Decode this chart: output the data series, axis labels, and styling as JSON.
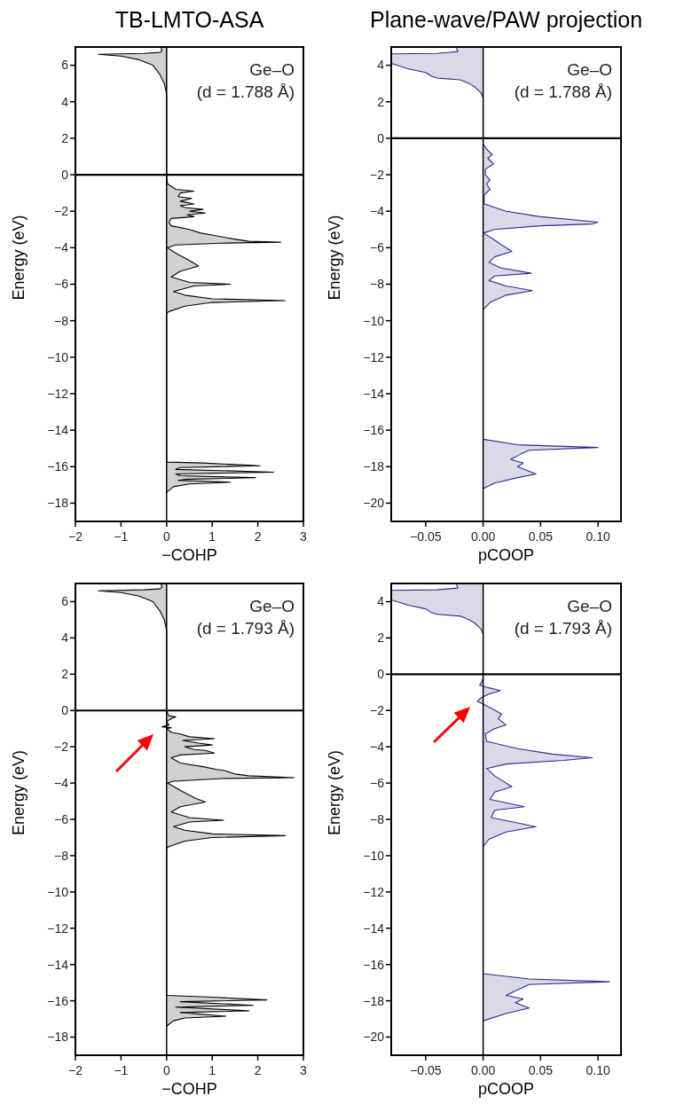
{
  "chart_data": [
    {
      "type": "area",
      "orientation": "horizontal",
      "title": "TB-LMTO-ASA",
      "xlabel": "−COHP",
      "ylabel": "Energy (eV)",
      "annotations": [
        "Ge–O",
        "(d = 1.788 Å)"
      ],
      "xlim": [
        -2,
        3
      ],
      "xticks": [
        {
          "value": -2,
          "label": "−2"
        },
        {
          "value": -1,
          "label": "−1"
        },
        0,
        1,
        2,
        3
      ],
      "ylim": [
        -19,
        7
      ],
      "yticks": [
        6,
        4,
        2,
        0,
        {
          "value": -2,
          "label": "−2"
        },
        {
          "value": -4,
          "label": "−4"
        },
        {
          "value": -6,
          "label": "−6"
        },
        {
          "value": -8,
          "label": "−8"
        },
        {
          "value": -10,
          "label": "−10"
        },
        {
          "value": -12,
          "label": "−12"
        },
        {
          "value": -14,
          "label": "−14"
        },
        {
          "value": -16,
          "label": "−16"
        },
        {
          "value": -18,
          "label": "−18"
        }
      ],
      "ref_lines": [
        {
          "axis": "y",
          "value": 0
        }
      ],
      "series": [
        {
          "color": "#000000",
          "x": [
            7,
            6.9,
            6.8,
            6.7,
            6.65,
            6.6,
            6.5,
            6.3,
            6,
            5.5,
            5,
            4.4,
            0,
            -0.1,
            -0.5,
            -0.8,
            -0.9,
            -1,
            -1.2,
            -1.3,
            -1.45,
            -1.6,
            -1.7,
            -1.8,
            -1.9,
            -2,
            -2.1,
            -2.2,
            -2.3,
            -2.4,
            -2.6,
            -2.8,
            -3,
            -3.2,
            -3.3,
            -3.45,
            -3.55,
            -3.65,
            -3.7,
            -3.75,
            -3.85,
            -4,
            -4.3,
            -4.7,
            -5,
            -5.3,
            -5.6,
            -5.9,
            -6,
            -6.1,
            -6.4,
            -6.6,
            -6.8,
            -6.9,
            -7,
            -7.2,
            -7.5,
            -7.6,
            -15.75,
            -15.8,
            -15.95,
            -16.05,
            -16.15,
            -16.3,
            -16.4,
            -16.5,
            -16.6,
            -16.7,
            -16.75,
            -16.85,
            -16.95,
            -17.1,
            -17.4
          ],
          "values": [
            -0.1,
            -0.12,
            -0.1,
            -0.15,
            -0.5,
            -1.5,
            -1,
            -0.6,
            -0.3,
            -0.15,
            -0.05,
            0,
            0,
            0,
            0.02,
            0.2,
            0.6,
            0.3,
            0.25,
            0.55,
            0.3,
            0.6,
            0.3,
            0.4,
            0.8,
            0.5,
            0.85,
            0.45,
            0.6,
            0.1,
            0.05,
            0.1,
            0.5,
            0.75,
            1,
            1.3,
            1.55,
            1.8,
            2.5,
            1.2,
            0.2,
            0.02,
            0.2,
            0.5,
            0.7,
            0.3,
            0.1,
            0.5,
            1.4,
            0.6,
            0.15,
            0.4,
            1,
            2.6,
            1,
            0.4,
            0.05,
            0,
            0,
            0.8,
            2.05,
            0.3,
            0.2,
            2.35,
            0.2,
            0.3,
            1.95,
            0.4,
            0.25,
            1.4,
            0.5,
            0.15,
            0
          ]
        }
      ]
    },
    {
      "type": "area",
      "orientation": "horizontal",
      "title": "Plane-wave/PAW projection",
      "xlabel": "pCOOP",
      "ylabel": "Energy (eV)",
      "annotations": [
        "Ge–O",
        "(d = 1.788 Å)"
      ],
      "xlim": [
        -0.08,
        0.12
      ],
      "xticks": [
        {
          "value": -0.05,
          "label": "−0.05"
        },
        {
          "value": 0,
          "label": "0.00"
        },
        {
          "value": 0.05,
          "label": "0.05"
        },
        {
          "value": 0.1,
          "label": "0.10"
        }
      ],
      "ylim": [
        -21,
        5
      ],
      "yticks": [
        4,
        2,
        0,
        {
          "value": -2,
          "label": "−2"
        },
        {
          "value": -4,
          "label": "−4"
        },
        {
          "value": -6,
          "label": "−6"
        },
        {
          "value": -8,
          "label": "−8"
        },
        {
          "value": -10,
          "label": "−10"
        },
        {
          "value": -12,
          "label": "−12"
        },
        {
          "value": -14,
          "label": "−14"
        },
        {
          "value": -16,
          "label": "−16"
        },
        {
          "value": -18,
          "label": "−18"
        },
        {
          "value": -20,
          "label": "−20"
        }
      ],
      "ref_lines": [
        {
          "axis": "y",
          "value": 0
        }
      ],
      "series": [
        {
          "color": "#2e2a8c",
          "x": [
            5,
            4.9,
            4.75,
            4.65,
            4.62,
            4.1,
            3.8,
            3.6,
            3.4,
            3.3,
            3.2,
            3,
            2.8,
            2.5,
            2.2,
            0,
            -0.3,
            -0.6,
            -0.9,
            -1.1,
            -1.4,
            -1.7,
            -2,
            -2.3,
            -2.5,
            -2.8,
            -3.1,
            -3.6,
            -4,
            -4.3,
            -4.6,
            -4.7,
            -4.8,
            -5,
            -5.2,
            -5.5,
            -5.8,
            -6.2,
            -6.5,
            -6.8,
            -7.1,
            -7.4,
            -7.55,
            -7.8,
            -8.1,
            -8.35,
            -8.6,
            -9,
            -9.4,
            -16.5,
            -16.8,
            -16.95,
            -17.1,
            -17.3,
            -17.6,
            -17.8,
            -18,
            -18.4,
            -18.6,
            -18.9,
            -19.2
          ],
          "values": [
            -0.023,
            -0.023,
            -0.022,
            -0.04,
            -0.08,
            -0.08,
            -0.065,
            -0.05,
            -0.045,
            -0.04,
            -0.02,
            -0.012,
            -0.007,
            -0.002,
            0,
            0,
            0,
            0.003,
            0.008,
            0.004,
            0.009,
            0.002,
            0.002,
            0.006,
            0.003,
            0.006,
            0.001,
            0.001,
            0.02,
            0.05,
            0.1,
            0.095,
            0.05,
            0.01,
            0,
            0.008,
            0.015,
            0.025,
            0.01,
            0.005,
            0.015,
            0.042,
            0.01,
            0.005,
            0.02,
            0.043,
            0.02,
            0.006,
            0,
            0,
            0.03,
            0.1,
            0.04,
            0.033,
            0.024,
            0.035,
            0.03,
            0.046,
            0.03,
            0.01,
            0
          ]
        }
      ]
    },
    {
      "type": "area",
      "orientation": "horizontal",
      "xlabel": "−COHP",
      "ylabel": "Energy (eV)",
      "annotations": [
        "Ge–O",
        "(d = 1.793 Å)"
      ],
      "xlim": [
        -2,
        3
      ],
      "xticks": [
        {
          "value": -2,
          "label": "−2"
        },
        {
          "value": -1,
          "label": "−1"
        },
        0,
        1,
        2,
        3
      ],
      "ylim": [
        -19,
        7
      ],
      "yticks": [
        6,
        4,
        2,
        0,
        {
          "value": -2,
          "label": "−2"
        },
        {
          "value": -4,
          "label": "−4"
        },
        {
          "value": -6,
          "label": "−6"
        },
        {
          "value": -8,
          "label": "−8"
        },
        {
          "value": -10,
          "label": "−10"
        },
        {
          "value": -12,
          "label": "−12"
        },
        {
          "value": -14,
          "label": "−14"
        },
        {
          "value": -16,
          "label": "−16"
        },
        {
          "value": -18,
          "label": "−18"
        }
      ],
      "ref_lines": [
        {
          "axis": "y",
          "value": 0
        }
      ],
      "series": [
        {
          "color": "#000000",
          "x": [
            7,
            6.9,
            6.8,
            6.7,
            6.65,
            6.6,
            6.5,
            6.3,
            6,
            5.5,
            5,
            4.4,
            0,
            -0.3,
            -0.35,
            -0.45,
            -0.6,
            -0.8,
            -0.9,
            -0.95,
            -1,
            -1.2,
            -1.3,
            -1.45,
            -1.55,
            -1.65,
            -1.8,
            -1.9,
            -2,
            -2.15,
            -2.2,
            -2.35,
            -2.45,
            -2.6,
            -2.9,
            -3.1,
            -3.25,
            -3.3,
            -3.5,
            -3.6,
            -3.7,
            -3.75,
            -3.9,
            -4,
            -4.4,
            -4.8,
            -5.05,
            -5.3,
            -5.6,
            -5.9,
            -6.05,
            -6.15,
            -6.4,
            -6.6,
            -6.8,
            -6.9,
            -7,
            -7.2,
            -7.5,
            -7.6,
            -15.7,
            -15.8,
            -15.95,
            -16.05,
            -16.25,
            -16.35,
            -16.55,
            -16.65,
            -16.85,
            -16.95,
            -17.1,
            -17.4
          ],
          "values": [
            -0.1,
            -0.12,
            -0.1,
            -0.15,
            -0.5,
            -1.5,
            -1,
            -0.6,
            -0.3,
            -0.15,
            -0.05,
            0,
            0,
            0.05,
            0.2,
            0.1,
            0,
            0.05,
            -0.1,
            0.1,
            0,
            0.1,
            0.3,
            0.5,
            1.05,
            0.35,
            0.7,
            1,
            0.4,
            0.6,
            0.85,
            1.05,
            0.3,
            0.1,
            0.3,
            0.8,
            1.1,
            1.25,
            1.5,
            1.8,
            2.8,
            1.2,
            0.15,
            0.02,
            0.3,
            0.6,
            0.85,
            0.3,
            0.1,
            0.5,
            1.25,
            0.5,
            0.15,
            0.4,
            1,
            2.6,
            1,
            0.4,
            0.05,
            0,
            0,
            1,
            2.2,
            0.3,
            1.9,
            0.2,
            1.8,
            0.3,
            1.3,
            0.4,
            0.15,
            0
          ]
        }
      ]
    },
    {
      "type": "area",
      "orientation": "horizontal",
      "xlabel": "pCOOP",
      "ylabel": "Energy (eV)",
      "annotations": [
        "Ge–O",
        "(d = 1.793 Å)"
      ],
      "xlim": [
        -0.08,
        0.12
      ],
      "xticks": [
        {
          "value": -0.05,
          "label": "−0.05"
        },
        {
          "value": 0,
          "label": "0.00"
        },
        {
          "value": 0.05,
          "label": "0.05"
        },
        {
          "value": 0.1,
          "label": "0.10"
        }
      ],
      "ylim": [
        -21,
        5
      ],
      "yticks": [
        4,
        2,
        0,
        {
          "value": -2,
          "label": "−2"
        },
        {
          "value": -4,
          "label": "−4"
        },
        {
          "value": -6,
          "label": "−6"
        },
        {
          "value": -8,
          "label": "−8"
        },
        {
          "value": -10,
          "label": "−10"
        },
        {
          "value": -12,
          "label": "−12"
        },
        {
          "value": -14,
          "label": "−14"
        },
        {
          "value": -16,
          "label": "−16"
        },
        {
          "value": -18,
          "label": "−18"
        },
        {
          "value": -20,
          "label": "−20"
        }
      ],
      "ref_lines": [
        {
          "axis": "y",
          "value": 0
        }
      ],
      "series": [
        {
          "color": "#2e2a8c",
          "x": [
            5,
            4.9,
            4.75,
            4.65,
            4.62,
            4.1,
            3.8,
            3.6,
            3.4,
            3.3,
            3.2,
            3,
            2.8,
            2.5,
            2.2,
            0,
            -0.2,
            -0.4,
            -0.6,
            -0.75,
            -0.9,
            -1.1,
            -1.3,
            -1.5,
            -1.65,
            -1.9,
            -2.2,
            -2.45,
            -2.8,
            -3,
            -3.3,
            -3.7,
            -4.1,
            -4.4,
            -4.6,
            -4.75,
            -4.95,
            -5.2,
            -5.6,
            -6.2,
            -6.5,
            -6.9,
            -7.3,
            -7.5,
            -7.9,
            -8.4,
            -8.7,
            -9.1,
            -9.5,
            -16.5,
            -16.8,
            -16.95,
            -17.1,
            -17.4,
            -17.7,
            -17.9,
            -18.1,
            -18.4,
            -18.7,
            -19.1
          ],
          "values": [
            -0.023,
            -0.023,
            -0.022,
            -0.04,
            -0.08,
            -0.08,
            -0.065,
            -0.05,
            -0.045,
            -0.04,
            -0.02,
            -0.012,
            -0.007,
            -0.002,
            0,
            0,
            0,
            -0.001,
            -0.003,
            0.005,
            0.015,
            0.005,
            -0.002,
            -0.005,
            0,
            0.008,
            0.016,
            0.013,
            0.02,
            0.01,
            0.002,
            0.003,
            0.03,
            0.06,
            0.095,
            0.07,
            0.02,
            0.003,
            0.01,
            0.025,
            0.01,
            0.006,
            0.036,
            0.01,
            0.007,
            0.046,
            0.02,
            0.005,
            0,
            0,
            0.04,
            0.11,
            0.04,
            0.03,
            0.02,
            0.035,
            0.028,
            0.04,
            0.02,
            0
          ]
        }
      ]
    }
  ]
}
